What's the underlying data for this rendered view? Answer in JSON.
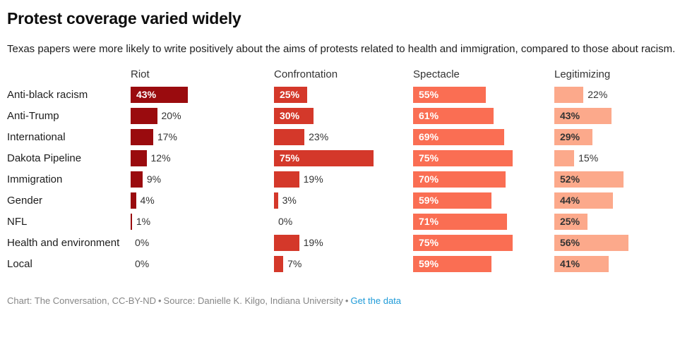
{
  "header": {
    "title": "Protest coverage varied widely",
    "subtitle": "Texas papers were more likely to write positively about the aims of protests related to health and immigration, compared to those about racism."
  },
  "chart_data": {
    "type": "bar",
    "orientation": "horizontal",
    "title": "Protest coverage varied widely",
    "subtitle": "Texas papers were more likely to write positively about the aims of protests related to health and immigration, compared to those about racism.",
    "value_suffix": "%",
    "xmax": 100,
    "grid": false,
    "legend_position": "column-headers",
    "categories": [
      "Anti-black racism",
      "Anti-Trump",
      "International",
      "Dakota Pipeline",
      "Immigration",
      "Gender",
      "NFL",
      "Health and environment",
      "Local"
    ],
    "series": [
      {
        "name": "Riot",
        "color": "#9a0b0e",
        "label_inside_color": "#ffffff",
        "values": [
          43,
          20,
          17,
          12,
          9,
          4,
          1,
          0,
          0
        ]
      },
      {
        "name": "Confrontation",
        "color": "#d4382a",
        "label_inside_color": "#ffffff",
        "values": [
          25,
          30,
          23,
          75,
          19,
          3,
          0,
          19,
          7
        ]
      },
      {
        "name": "Spectacle",
        "color": "#fa6e53",
        "label_inside_color": "#ffffff",
        "values": [
          55,
          61,
          69,
          75,
          70,
          59,
          71,
          75,
          59
        ]
      },
      {
        "name": "Legitimizing",
        "color": "#fca98b",
        "label_inside_color": "#333333",
        "values": [
          22,
          43,
          29,
          15,
          52,
          44,
          25,
          56,
          41
        ]
      }
    ]
  },
  "footer": {
    "credit": "Chart: The Conversation, CC-BY-ND",
    "separator": "•",
    "source": "Source: Danielle K. Kilgo, Indiana University",
    "link": "Get the data",
    "link_color": "#1f9bd8"
  }
}
